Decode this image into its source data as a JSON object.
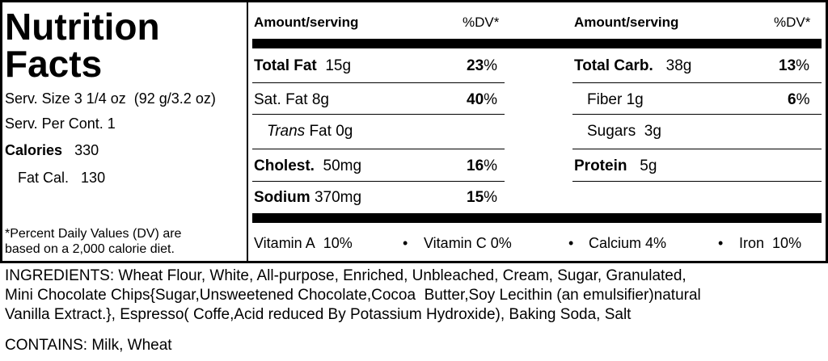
{
  "label": {
    "title_line1": "Nutrition",
    "title_line2": "Facts",
    "serving_size_label": "Serv. Size",
    "serving_size_value": "3 1/4 oz  (92 g/3.2 oz)",
    "servings_label": "Serv. Per Cont.",
    "servings_value": "1",
    "calories_label": "Calories",
    "calories_value": "330",
    "fat_cal_label": "Fat Cal.",
    "fat_cal_value": "130",
    "footnote_line1": "*Percent Daily Values (DV) are",
    "footnote_line2": "based on a 2,000 calorie diet."
  },
  "headers": {
    "amount_left": "Amount/serving",
    "dv_left": "%DV*",
    "amount_right": "Amount/serving",
    "dv_right": "%DV*"
  },
  "left_nutrients": {
    "total_fat": {
      "name": "Total Fat",
      "amount": "15g",
      "dv": "23"
    },
    "sat_fat": {
      "name": "Sat. Fat",
      "amount": "8g",
      "dv": "40"
    },
    "trans_fat": {
      "name_italic": "Trans",
      "name_rest": "Fat",
      "amount": "0g"
    },
    "cholest": {
      "name": "Cholest.",
      "amount": "50mg",
      "dv": "16"
    },
    "sodium": {
      "name": "Sodium",
      "amount": "370mg",
      "dv": "15"
    }
  },
  "right_nutrients": {
    "total_carb": {
      "name": "Total Carb.",
      "amount": "38g",
      "dv": "13"
    },
    "fiber": {
      "name": "Fiber",
      "amount": "1g",
      "dv": "6"
    },
    "sugars": {
      "name": "Sugars",
      "amount": "3g"
    },
    "protein": {
      "name": "Protein",
      "amount": "5g"
    }
  },
  "percent_sign": "%",
  "bullet": "•",
  "vitamins": [
    {
      "name": "Vitamin A",
      "value": "10",
      "unit": "%"
    },
    {
      "name": "Vitamin C",
      "value": "0",
      "unit": "%"
    },
    {
      "name": "Calcium",
      "value": "4",
      "unit": "%"
    },
    {
      "name": "Iron",
      "value": "10",
      "unit": "%"
    }
  ],
  "ingredients": {
    "line1": "INGREDIENTS: Wheat Flour, White, All-purpose, Enriched, Unbleached, Cream, Sugar, Granulated,",
    "line2": "Mini Chocolate Chips{Sugar,Unsweetened Chocolate,Cocoa  Butter,Soy Lecithin (an emulsifier)natural",
    "line3": "Vanilla Extract.}, Espresso( Coffe,Acid reduced By Potassium Hydroxide), Baking Soda, Salt"
  },
  "contains": "CONTAINS: Milk, Wheat"
}
